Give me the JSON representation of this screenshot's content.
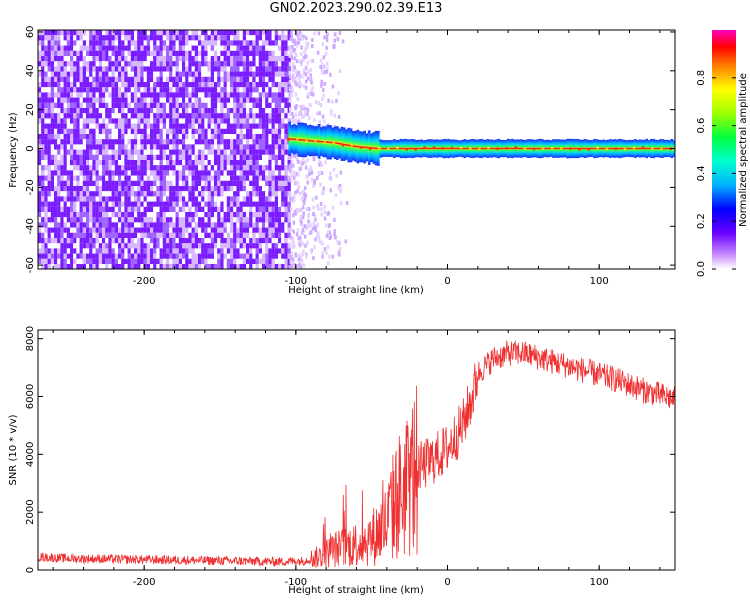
{
  "title": "GN02.2023.290.02.39.E13",
  "colors": {
    "axis": "#000000",
    "snr_line": "#f03030",
    "noise_dark": "#7a1cff",
    "noise_light": "#d7b8ff"
  },
  "chart_data": [
    {
      "type": "heatmap",
      "title": "GN02.2023.290.02.39.E13",
      "xlabel": "Height of straight line (km)",
      "ylabel": "Frequency (Hz)",
      "xlim": [
        -270,
        150
      ],
      "ylim": [
        -62,
        61
      ],
      "xticks": [
        -200,
        -100,
        0,
        100
      ],
      "yticks": [
        60,
        40,
        20,
        0,
        -20,
        -40,
        -60
      ],
      "noise_region_x": [
        -270,
        -105
      ],
      "sparse_noise_x": [
        -105,
        -65
      ],
      "signal_band": {
        "x_range": [
          -105,
          150
        ],
        "frequency_start_hz": 5,
        "frequency_end_hz": 0,
        "track": [
          [
            -105,
            5
          ],
          [
            -90,
            4
          ],
          [
            -75,
            3
          ],
          [
            -60,
            1
          ],
          [
            -45,
            0
          ],
          [
            0,
            0
          ],
          [
            150,
            0
          ]
        ]
      },
      "colorbar": {
        "label": "Normalized spectral amplitude",
        "range": [
          0.0,
          1.0
        ],
        "ticks": [
          "0.0",
          "0.2",
          "0.4",
          "0.6",
          "0.8"
        ]
      }
    },
    {
      "type": "line",
      "xlabel": "Height of straight line (km)",
      "ylabel": "SNR (10 * v/v)",
      "xlim": [
        -270,
        150
      ],
      "ylim": [
        0,
        8300
      ],
      "xticks": [
        -200,
        -100,
        0,
        100
      ],
      "yticks": [
        0,
        2000,
        4000,
        6000,
        8000
      ],
      "series": [
        {
          "x": [
            -270,
            -250,
            -200,
            -150,
            -110,
            -95,
            -85,
            -75,
            -60,
            -50,
            -40,
            -35,
            -30,
            -25,
            -20,
            -10,
            0,
            10,
            17,
            20,
            30,
            40,
            50,
            70,
            90,
            110,
            130,
            150
          ],
          "y": [
            450,
            400,
            360,
            320,
            290,
            320,
            450,
            700,
            900,
            1100,
            1600,
            2300,
            2700,
            3100,
            3500,
            3800,
            4200,
            5000,
            6100,
            6800,
            7300,
            7500,
            7500,
            7200,
            6900,
            6600,
            6200,
            5900
          ]
        }
      ]
    }
  ]
}
